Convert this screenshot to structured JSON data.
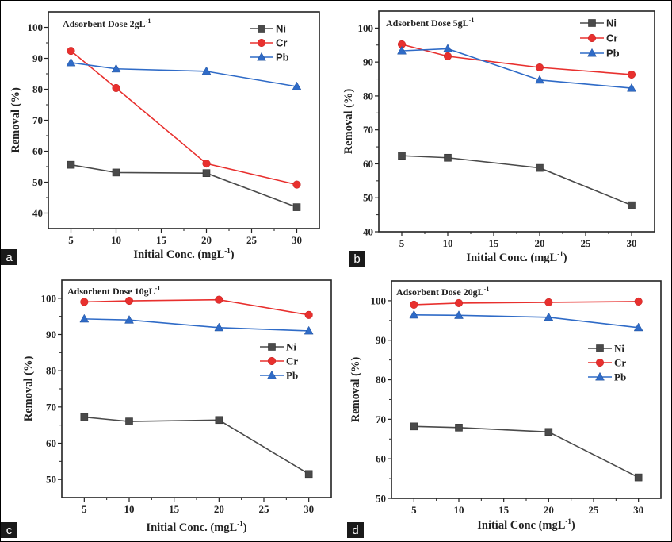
{
  "figure": {
    "panel_letters": [
      "a",
      "b",
      "c",
      "d"
    ]
  },
  "chart_data": [
    {
      "type": "line",
      "panel": "a",
      "title": "Adsorbent Dose 2gL",
      "title_superscript": "-1",
      "xlabel": "Initial Conc. (mgL",
      "xlabel_superscript": "-1",
      "xlabel_suffix": ")",
      "ylabel": "Removal (%)",
      "x": [
        5,
        10,
        20,
        30
      ],
      "xlim": [
        2.5,
        32.5
      ],
      "ylim": [
        35,
        105
      ],
      "xticks": [
        5,
        10,
        15,
        20,
        25,
        30
      ],
      "yticks": [
        40,
        50,
        60,
        70,
        80,
        90,
        100
      ],
      "grid": false,
      "legend_position": "top-right",
      "series": [
        {
          "name": "Ni",
          "color": "#4a4a4a",
          "marker": "square",
          "values": [
            55.6,
            53.1,
            52.9,
            41.9
          ]
        },
        {
          "name": "Cr",
          "color": "#e8302e",
          "marker": "circle",
          "values": [
            92.4,
            80.4,
            56.0,
            49.2
          ]
        },
        {
          "name": "Pb",
          "color": "#2f6bc7",
          "marker": "triangle",
          "values": [
            88.6,
            86.6,
            85.8,
            80.9
          ]
        }
      ]
    },
    {
      "type": "line",
      "panel": "b",
      "title": "Adsorbent Dose 5gL",
      "title_superscript": "-1",
      "xlabel": "Initial Conc. (mgL",
      "xlabel_superscript": "-1",
      "xlabel_suffix": ")",
      "ylabel": "Removal (%)",
      "x": [
        5,
        10,
        20,
        30
      ],
      "xlim": [
        2.5,
        32.5
      ],
      "ylim": [
        40,
        105
      ],
      "xticks": [
        5,
        10,
        15,
        20,
        25,
        30
      ],
      "yticks": [
        40,
        50,
        60,
        70,
        80,
        90,
        100
      ],
      "grid": false,
      "legend_position": "top-right",
      "series": [
        {
          "name": "Ni",
          "color": "#4a4a4a",
          "marker": "square",
          "values": [
            62.4,
            61.8,
            58.8,
            47.8
          ]
        },
        {
          "name": "Cr",
          "color": "#e8302e",
          "marker": "circle",
          "values": [
            95.2,
            91.7,
            88.4,
            86.3
          ]
        },
        {
          "name": "Pb",
          "color": "#2f6bc7",
          "marker": "triangle",
          "values": [
            93.3,
            93.9,
            84.7,
            82.3
          ]
        }
      ]
    },
    {
      "type": "line",
      "panel": "c",
      "title": "Adsorbent Dose 10gL",
      "title_superscript": "-1",
      "xlabel": "Initial Conc. (mgL",
      "xlabel_superscript": "-1",
      "xlabel_suffix": ")",
      "ylabel": "Removal (%)",
      "x": [
        5,
        10,
        20,
        30
      ],
      "xlim": [
        2.5,
        32.5
      ],
      "ylim": [
        45,
        105
      ],
      "xticks": [
        5,
        10,
        15,
        20,
        25,
        30
      ],
      "yticks": [
        50,
        60,
        70,
        80,
        90,
        100
      ],
      "grid": false,
      "legend_position": "center-right",
      "series": [
        {
          "name": "Ni",
          "color": "#4a4a4a",
          "marker": "square",
          "values": [
            67.2,
            66.0,
            66.4,
            51.5
          ]
        },
        {
          "name": "Cr",
          "color": "#e8302e",
          "marker": "circle",
          "values": [
            99.0,
            99.3,
            99.6,
            95.4
          ]
        },
        {
          "name": "Pb",
          "color": "#2f6bc7",
          "marker": "triangle",
          "values": [
            94.3,
            94.0,
            91.9,
            91.0
          ]
        }
      ]
    },
    {
      "type": "line",
      "panel": "d",
      "title": "Adsorbent Dose 20gL",
      "title_superscript": "-1",
      "xlabel": "Initial Conc (mgL",
      "xlabel_superscript": "-1",
      "xlabel_suffix": ")",
      "ylabel": "Removal (%)",
      "x": [
        5,
        10,
        20,
        30
      ],
      "xlim": [
        2.5,
        32.5
      ],
      "ylim": [
        50,
        105
      ],
      "xticks": [
        5,
        10,
        15,
        20,
        25,
        30
      ],
      "yticks": [
        50,
        60,
        70,
        80,
        90,
        100
      ],
      "grid": false,
      "legend_position": "center-right",
      "series": [
        {
          "name": "Ni",
          "color": "#4a4a4a",
          "marker": "square",
          "values": [
            68.2,
            67.9,
            66.8,
            55.3
          ]
        },
        {
          "name": "Cr",
          "color": "#e8302e",
          "marker": "circle",
          "values": [
            99.0,
            99.4,
            99.6,
            99.8
          ]
        },
        {
          "name": "Pb",
          "color": "#2f6bc7",
          "marker": "triangle",
          "values": [
            96.4,
            96.3,
            95.8,
            93.2
          ]
        }
      ]
    }
  ]
}
